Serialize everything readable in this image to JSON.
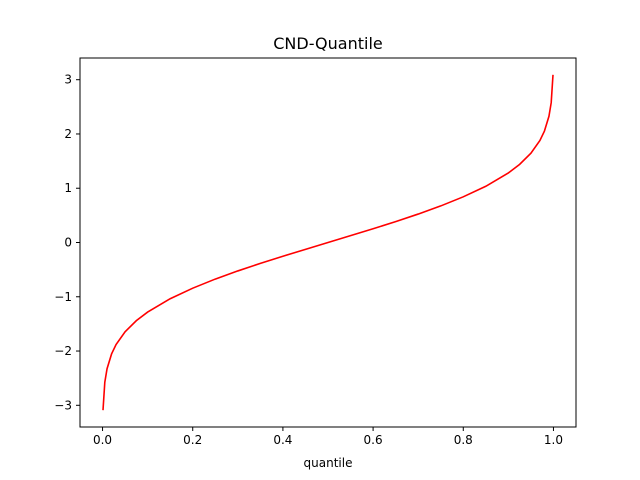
{
  "chart_data": {
    "type": "line",
    "title": "CND-Quantile",
    "xlabel": "quantile",
    "ylabel": "",
    "xlim": [
      -0.05,
      1.05
    ],
    "ylim": [
      -3.4,
      3.4
    ],
    "x_ticks": [
      0.0,
      0.2,
      0.4,
      0.6,
      0.8,
      1.0
    ],
    "x_tick_labels": [
      "0.0",
      "0.2",
      "0.4",
      "0.6",
      "0.8",
      "1.0"
    ],
    "y_ticks": [
      -3,
      -2,
      -1,
      0,
      1,
      2,
      3
    ],
    "y_tick_labels": [
      "−3",
      "−2",
      "−1",
      "0",
      "1",
      "2",
      "3"
    ],
    "grid": false,
    "legend": "none",
    "series": [
      {
        "color": "#ff0000",
        "x": [
          0.001,
          0.005,
          0.01,
          0.02,
          0.03,
          0.05,
          0.075,
          0.1,
          0.15,
          0.2,
          0.25,
          0.3,
          0.35,
          0.4,
          0.45,
          0.5,
          0.55,
          0.6,
          0.65,
          0.7,
          0.75,
          0.8,
          0.85,
          0.9,
          0.925,
          0.95,
          0.97,
          0.98,
          0.99,
          0.995,
          0.999
        ],
        "y": [
          -3.09,
          -2.576,
          -2.326,
          -2.054,
          -1.881,
          -1.645,
          -1.44,
          -1.282,
          -1.036,
          -0.842,
          -0.674,
          -0.524,
          -0.385,
          -0.253,
          -0.126,
          0.0,
          0.126,
          0.253,
          0.385,
          0.524,
          0.674,
          0.842,
          1.036,
          1.282,
          1.44,
          1.645,
          1.881,
          2.054,
          2.326,
          2.576,
          3.09
        ]
      }
    ]
  }
}
